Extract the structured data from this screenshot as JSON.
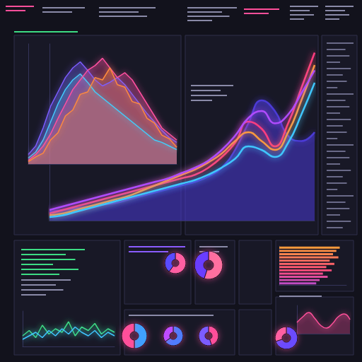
{
  "chart_data": [
    {
      "type": "line",
      "x": [
        0,
        1,
        2,
        3,
        4,
        5,
        6,
        7,
        8,
        9,
        10,
        11,
        12,
        13,
        14,
        15,
        16,
        17,
        18,
        19,
        20
      ],
      "xlim": [
        0,
        20
      ],
      "ylim": [
        0,
        100
      ],
      "tick_labels": false,
      "series": [
        {
          "type": "area",
          "color": "#3fd0ff",
          "values": [
            5,
            10,
            20,
            35,
            50,
            62,
            70,
            75,
            68,
            60,
            55,
            50,
            45,
            40,
            35,
            30,
            25,
            20,
            18,
            15,
            12
          ]
        },
        {
          "type": "area",
          "color": "#7b5cff",
          "values": [
            8,
            15,
            30,
            48,
            60,
            72,
            80,
            85,
            78,
            70,
            65,
            68,
            72,
            66,
            58,
            50,
            42,
            35,
            28,
            22,
            18
          ]
        },
        {
          "type": "area",
          "color": "#ff4fa0",
          "values": [
            3,
            8,
            15,
            25,
            38,
            50,
            62,
            70,
            78,
            82,
            88,
            80,
            72,
            76,
            70,
            60,
            50,
            40,
            30,
            25,
            20
          ]
        },
        {
          "type": "area",
          "color": "#ff8a3d",
          "values": [
            2,
            6,
            9,
            20,
            26,
            40,
            45,
            58,
            60,
            72,
            70,
            80,
            66,
            64,
            52,
            50,
            38,
            34,
            24,
            21,
            14
          ]
        }
      ]
    },
    {
      "type": "line",
      "x": [
        0,
        1,
        2,
        3,
        4,
        5,
        6,
        7,
        8,
        9,
        10,
        11,
        12,
        13,
        14,
        15,
        16,
        17,
        18,
        19,
        20
      ],
      "xlim": [
        0,
        20
      ],
      "ylim": [
        0,
        100
      ],
      "tick_labels": false,
      "series": [
        {
          "type": "area",
          "color": "#4b3bd6",
          "values": [
            5,
            6,
            7,
            8,
            9,
            10,
            12,
            14,
            16,
            18,
            20,
            22,
            25,
            30,
            40,
            55,
            68,
            62,
            48,
            45,
            50
          ]
        },
        {
          "type": "line",
          "color": "#ff3d7f",
          "values": [
            4,
            6,
            8,
            10,
            12,
            14,
            16,
            18,
            20,
            22,
            24,
            26,
            30,
            36,
            44,
            56,
            52,
            42,
            55,
            75,
            95
          ]
        },
        {
          "type": "line",
          "color": "#ff9a3c",
          "values": [
            3,
            4,
            6,
            8,
            10,
            12,
            14,
            17,
            20,
            23,
            26,
            29,
            33,
            38,
            45,
            50,
            45,
            40,
            50,
            68,
            88
          ]
        },
        {
          "type": "line",
          "color": "#b04cff",
          "values": [
            6,
            8,
            10,
            12,
            14,
            16,
            18,
            20,
            22,
            24,
            27,
            30,
            34,
            40,
            48,
            58,
            62,
            55,
            60,
            72,
            85
          ]
        },
        {
          "type": "line",
          "color": "#3fc6ff",
          "values": [
            2,
            3,
            5,
            7,
            9,
            11,
            13,
            15,
            17,
            19,
            21,
            23,
            26,
            30,
            35,
            42,
            40,
            36,
            44,
            60,
            78
          ]
        }
      ]
    },
    {
      "type": "line",
      "x": [
        0,
        1,
        2,
        3,
        4,
        5,
        6,
        7,
        8,
        9,
        10,
        11,
        12,
        13,
        14
      ],
      "xlim": [
        0,
        14
      ],
      "ylim": [
        0,
        100
      ],
      "tick_labels": false,
      "series": [
        {
          "type": "line",
          "color": "#3ddc84",
          "values": [
            30,
            45,
            25,
            60,
            35,
            50,
            40,
            70,
            30,
            55,
            45,
            65,
            35,
            50,
            40
          ]
        },
        {
          "type": "line",
          "color": "#3fc6ff",
          "values": [
            20,
            30,
            40,
            25,
            45,
            30,
            50,
            35,
            55,
            40,
            30,
            45,
            25,
            40,
            30
          ]
        }
      ]
    },
    {
      "type": "bar",
      "orientation": "horizontal",
      "categories": [
        null,
        null,
        null,
        null,
        null,
        null,
        null,
        null,
        null,
        null,
        null,
        null
      ],
      "values": [
        90,
        85,
        80,
        88,
        75,
        82,
        70,
        78,
        65,
        72,
        60,
        55
      ],
      "xlim": [
        0,
        100
      ],
      "tick_labels": false,
      "colors": [
        "#ff9a3c",
        "#ff8f45",
        "#ff844e",
        "#ff7957",
        "#ff6e60",
        "#ff6369",
        "#ff5872",
        "#ff4d7b",
        "#f04c8c",
        "#e04c9e",
        "#d04cb0",
        "#c04cc2"
      ]
    },
    {
      "type": "line",
      "x": [
        0,
        1,
        2,
        3,
        4,
        5,
        6,
        7,
        8,
        9
      ],
      "xlim": [
        0,
        9
      ],
      "ylim": [
        0,
        100
      ],
      "tick_labels": false,
      "series": [
        {
          "type": "area",
          "color": "#ff4f9a",
          "values": [
            40,
            60,
            75,
            55,
            30,
            20,
            35,
            60,
            70,
            50
          ]
        }
      ]
    },
    {
      "type": "pie",
      "values": [
        60,
        40
      ],
      "colors": [
        "#ff5fa2",
        "#5a4cff"
      ]
    },
    {
      "type": "pie",
      "values": [
        55,
        45
      ],
      "colors": [
        "#ff6fa0",
        "#6a3cff"
      ]
    },
    {
      "type": "pie",
      "values": [
        50,
        50
      ],
      "colors": [
        "#3fa0ff",
        "#ff4f9a"
      ]
    },
    {
      "type": "pie",
      "values": [
        65,
        35
      ],
      "colors": [
        "#4f7cff",
        "#c04cff"
      ]
    },
    {
      "type": "pie",
      "values": [
        45,
        55
      ],
      "colors": [
        "#ff4f9a",
        "#7b5cff"
      ]
    },
    {
      "type": "pie",
      "values": [
        70,
        30
      ],
      "colors": [
        "#6a4cff",
        "#ff5fa2"
      ]
    }
  ]
}
